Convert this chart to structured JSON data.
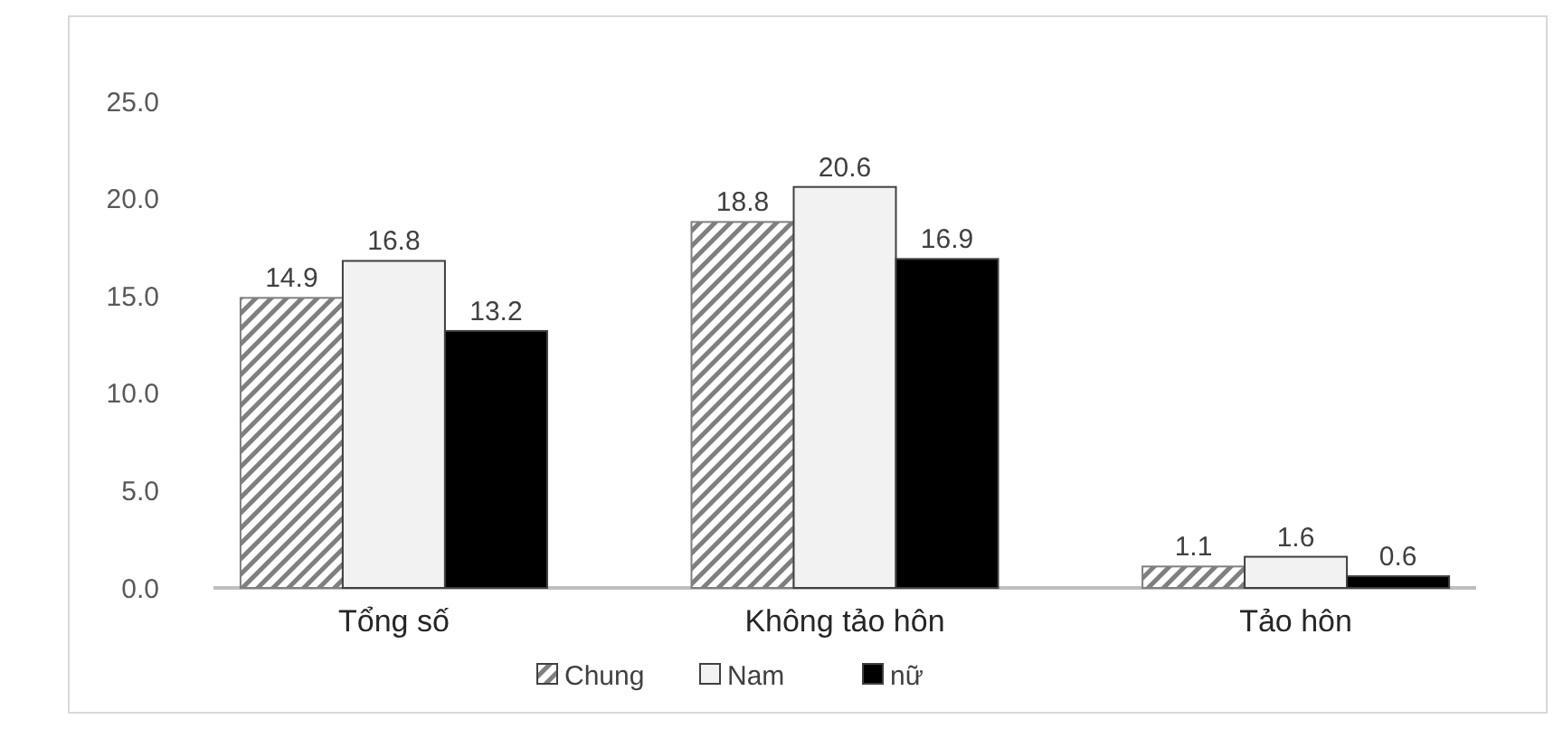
{
  "chart_data": {
    "type": "bar",
    "categories": [
      "Tổng số",
      "Không tảo hôn",
      "Tảo hôn"
    ],
    "series": [
      {
        "name": "Chung",
        "color": "#7f7f7f",
        "values": [
          14.9,
          18.8,
          1.1
        ],
        "value_labels": [
          "14.9",
          "18.8",
          "1.1"
        ]
      },
      {
        "name": "Nam",
        "color": "#f2f2f2",
        "values": [
          16.8,
          20.6,
          1.6
        ],
        "value_labels": [
          "16.8",
          "20.6",
          "1.6"
        ]
      },
      {
        "name": "nữ",
        "color": "#000000",
        "values": [
          13.2,
          16.9,
          0.6
        ],
        "value_labels": [
          "13.2",
          "16.9",
          "0.6"
        ]
      }
    ],
    "ylim": [
      0,
      25
    ],
    "yticks": [
      {
        "value": 0,
        "label": "0.0"
      },
      {
        "value": 5,
        "label": "5.0"
      },
      {
        "value": 10,
        "label": "10.0"
      },
      {
        "value": 15,
        "label": "15.0"
      },
      {
        "value": 20,
        "label": "20.0"
      },
      {
        "value": 25,
        "label": "25.0"
      }
    ],
    "grid": false,
    "legend": "bottom"
  }
}
